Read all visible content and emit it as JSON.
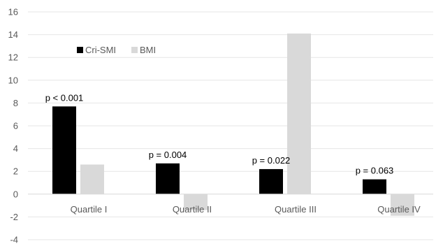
{
  "chart_data": {
    "type": "bar",
    "categories": [
      "Quartile I",
      "Quartile II",
      "Quartile III",
      "Quartile IV"
    ],
    "series": [
      {
        "name": "Cri-SMI",
        "color": "#000000",
        "values": [
          7.7,
          2.7,
          2.2,
          1.3
        ]
      },
      {
        "name": "BMI",
        "color": "#d9d9d9",
        "values": [
          2.6,
          -1.4,
          14.1,
          -1.9
        ]
      }
    ],
    "annotations": [
      "p < 0.001",
      "p = 0.004",
      "p = 0.022",
      "p = 0.063"
    ],
    "ylim": [
      -4,
      16
    ],
    "yticks": [
      -4,
      -2,
      0,
      2,
      4,
      6,
      8,
      10,
      12,
      14,
      16
    ],
    "grid": true,
    "legend_position": "top-left"
  }
}
